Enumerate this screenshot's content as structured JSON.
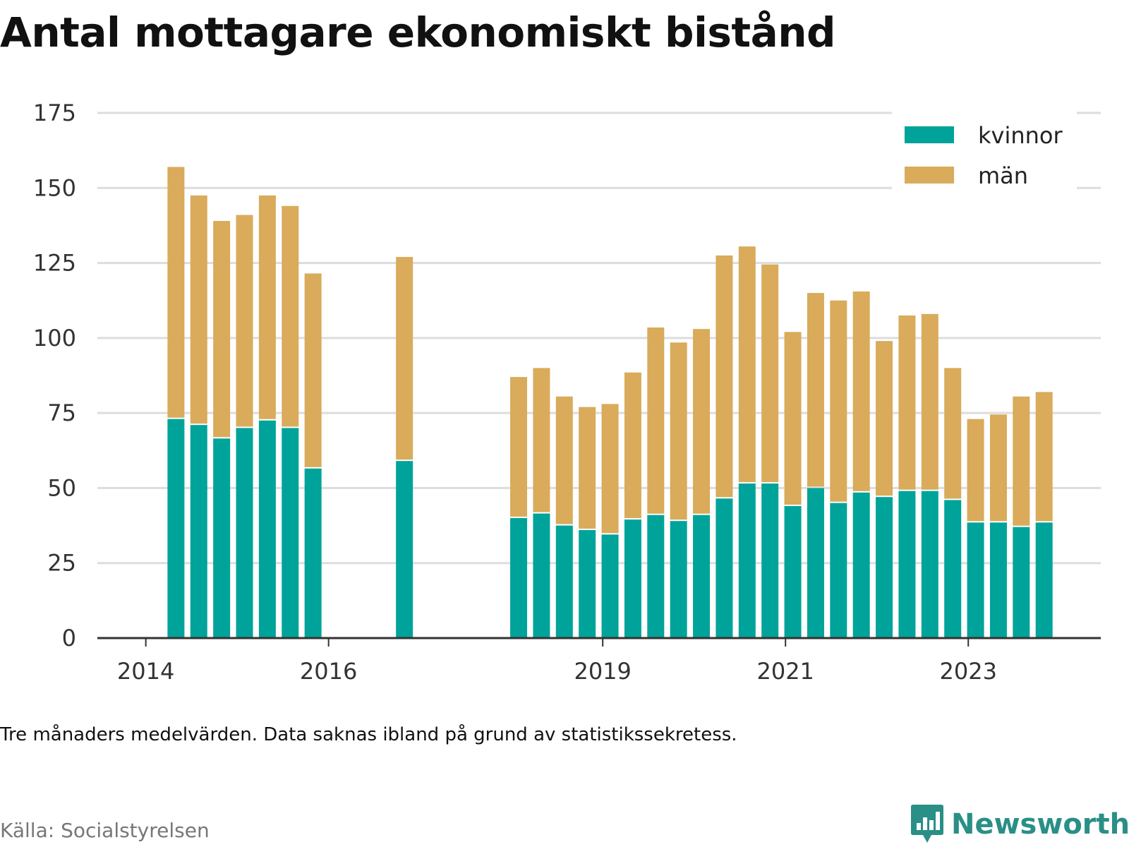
{
  "title": "Antal mottagare ekonomiskt bistånd",
  "note": "Tre månaders medelvärden. Data saknas ibland på grund av statistikssekretess.",
  "source": "Källa: Socialstyrelsen",
  "brand": "Newsworthy",
  "colors": {
    "kvinnor": "#00a39a",
    "man": "#d9ab5a",
    "grid": "#dddddd",
    "axis": "#333333",
    "brand": "#2a8f86"
  },
  "chart_data": {
    "type": "bar",
    "stacked": true,
    "title": "Antal mottagare ekonomiskt bistånd",
    "xlabel": "",
    "ylabel": "",
    "ylim": [
      0,
      175
    ],
    "yticks": [
      0,
      25,
      50,
      75,
      100,
      125,
      150,
      175
    ],
    "xticks": [
      {
        "label": "2014",
        "value": 2014.0
      },
      {
        "label": "2016",
        "value": 2016.0
      },
      {
        "label": "2019",
        "value": 2019.0
      },
      {
        "label": "2021",
        "value": 2021.0
      },
      {
        "label": "2023",
        "value": 2023.0
      }
    ],
    "xlim": [
      2013.47,
      2024.45
    ],
    "grid": true,
    "legend_position": "top-right",
    "x": [
      2014.33,
      2014.58,
      2014.83,
      2015.08,
      2015.33,
      2015.58,
      2015.83,
      2016.83,
      2018.08,
      2018.33,
      2018.58,
      2018.83,
      2019.08,
      2019.33,
      2019.58,
      2019.83,
      2020.08,
      2020.33,
      2020.58,
      2020.83,
      2021.08,
      2021.33,
      2021.58,
      2021.83,
      2022.08,
      2022.33,
      2022.58,
      2022.83,
      2023.08,
      2023.33,
      2023.58,
      2023.83
    ],
    "series": [
      {
        "name": "kvinnor",
        "values": [
          73,
          71,
          66.5,
          70,
          72.5,
          70,
          56.5,
          59,
          40,
          41.5,
          37.5,
          36,
          34.5,
          39.5,
          41,
          39,
          41,
          46.5,
          51.5,
          51.5,
          44,
          50,
          45,
          48.5,
          47,
          49,
          49,
          46,
          38.5,
          38.5,
          37,
          38.5
        ]
      },
      {
        "name": "män",
        "values": [
          84,
          76.5,
          72.5,
          71,
          75,
          74,
          65,
          68,
          47,
          48.5,
          43,
          41,
          43.5,
          49,
          62.5,
          59.5,
          62,
          81,
          79,
          73,
          58,
          65,
          67.5,
          67,
          52,
          58.5,
          59,
          44,
          34.5,
          36,
          43.5,
          43.5
        ]
      }
    ]
  }
}
